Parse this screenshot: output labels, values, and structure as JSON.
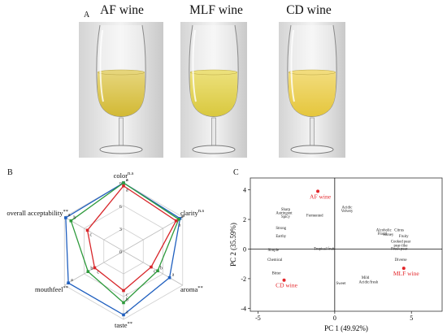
{
  "panel_a": {
    "letter": "A",
    "glasses": [
      {
        "title": "AF wine",
        "liquid_top": "#e6d57a",
        "liquid_bottom": "#d2b934"
      },
      {
        "title": "MLF wine",
        "liquid_top": "#ece07a",
        "liquid_bottom": "#d9c83e"
      },
      {
        "title": "CD wine",
        "liquid_top": "#f2dc7c",
        "liquid_bottom": "#e5c63c"
      }
    ]
  },
  "panel_b": {
    "letter": "B",
    "chart_data": {
      "type": "radar",
      "axes": [
        {
          "name": "color",
          "sig": "n.s"
        },
        {
          "name": "clarity",
          "sig": "n.s"
        },
        {
          "name": "aroma",
          "sig": "**"
        },
        {
          "name": "taste",
          "sig": "**"
        },
        {
          "name": "mouthfeel",
          "sig": "**"
        },
        {
          "name": "overall acceptability",
          "sig": "**"
        }
      ],
      "range": [
        0,
        9
      ],
      "rings": [
        0,
        3,
        6,
        9
      ],
      "ring_labels": [
        "0",
        "3",
        "6",
        "9"
      ],
      "series": [
        {
          "color": "#1f5fbf",
          "values": [
            9.0,
            8.6,
            7.0,
            8.4,
            8.4,
            8.8
          ]
        },
        {
          "color": "#2e9a3c",
          "values": [
            9.0,
            8.4,
            5.2,
            6.8,
            5.4,
            8.0
          ]
        },
        {
          "color": "#d8262a",
          "values": [
            8.6,
            8.0,
            4.2,
            5.2,
            4.4,
            5.5
          ]
        }
      ],
      "point_labels": [
        [
          "a",
          "a",
          "a",
          "a",
          "a",
          "a"
        ],
        [
          "a",
          "a",
          "b",
          "b",
          "b",
          "b"
        ],
        [
          "a",
          "a",
          "c",
          "c",
          "c",
          "c"
        ]
      ]
    }
  },
  "panel_c": {
    "letter": "C",
    "chart_data": {
      "type": "scatter",
      "xlabel": "PC 1 (49.92%)",
      "ylabel": "PC 2 (35.59%)",
      "xlim": [
        -5.5,
        7.0
      ],
      "ylim": [
        -4.2,
        4.8
      ],
      "xticks": [
        -5,
        0,
        5
      ],
      "yticks": [
        -4,
        -2,
        0,
        2,
        4
      ],
      "samples": [
        {
          "label": "AF wine",
          "x": -1.1,
          "y": 3.9
        },
        {
          "label": "MLF wine",
          "x": 4.5,
          "y": -1.3
        },
        {
          "label": "CD wine",
          "x": -3.3,
          "y": -2.1
        }
      ],
      "attributes": [
        {
          "label": "Sharp",
          "x": -3.2,
          "y": 2.6
        },
        {
          "label": "Astringent",
          "x": -3.3,
          "y": 2.35
        },
        {
          "label": "Spicy",
          "x": -3.2,
          "y": 2.1
        },
        {
          "label": "Fermented",
          "x": -1.3,
          "y": 2.2
        },
        {
          "label": "Acidic",
          "x": 0.8,
          "y": 2.75
        },
        {
          "label": "Velvety",
          "x": 0.8,
          "y": 2.5
        },
        {
          "label": "Strong",
          "x": -3.5,
          "y": 1.35
        },
        {
          "label": "Earthy",
          "x": -3.5,
          "y": 0.8
        },
        {
          "label": "Alcoholic",
          "x": 3.2,
          "y": 1.2
        },
        {
          "label": "Citrus",
          "x": 4.2,
          "y": 1.2
        },
        {
          "label": "Honey",
          "x": 3.5,
          "y": 0.9
        },
        {
          "label": "Floral",
          "x": 3.1,
          "y": 0.95
        },
        {
          "label": "Fruity",
          "x": 4.5,
          "y": 0.8
        },
        {
          "label": "Cooked pear",
          "x": 4.3,
          "y": 0.45
        },
        {
          "label": "pear-like",
          "x": 4.3,
          "y": 0.15
        },
        {
          "label": "Fresh pear",
          "x": 4.2,
          "y": -0.05
        },
        {
          "label": "Tropical fruit",
          "x": -0.7,
          "y": -0.05
        },
        {
          "label": "Simple",
          "x": -4.0,
          "y": -0.15
        },
        {
          "label": "Chemical",
          "x": -3.9,
          "y": -0.8
        },
        {
          "label": "Diverse",
          "x": 4.3,
          "y": -0.8
        },
        {
          "label": "Bitter",
          "x": -3.8,
          "y": -1.7
        },
        {
          "label": "Mild",
          "x": 2.0,
          "y": -2.0
        },
        {
          "label": "Acidic/fresh",
          "x": 2.2,
          "y": -2.3
        },
        {
          "label": "Sweet",
          "x": 0.4,
          "y": -2.4
        }
      ]
    }
  }
}
